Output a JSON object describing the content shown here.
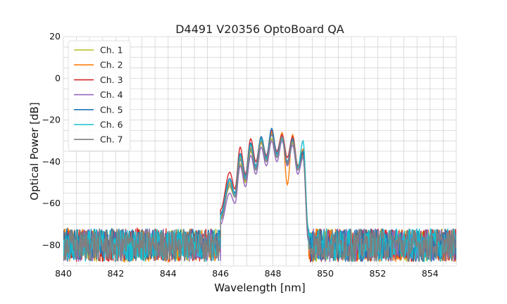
{
  "chart_data": {
    "type": "line",
    "title": "D4491 V20356 OptoBoard QA",
    "xlabel": "Wavelength [nm]",
    "ylabel": "Optical Power [dB]",
    "xlim": [
      840,
      855
    ],
    "ylim": [
      -90,
      20
    ],
    "x_ticks": [
      840,
      842,
      844,
      846,
      848,
      850,
      852,
      854
    ],
    "y_ticks": [
      -80,
      -60,
      -40,
      -20,
      0,
      20
    ],
    "x_tick_labels": [
      "840",
      "842",
      "844",
      "846",
      "848",
      "850",
      "852",
      "854"
    ],
    "y_tick_labels": [
      "−80",
      "−60",
      "−40",
      "−20",
      "0",
      "20"
    ],
    "grid": true,
    "legend_position": "upper-left",
    "noise_floor_db": -80,
    "series": [
      {
        "name": "Ch. 1",
        "color": "#bcbd22",
        "x": [
          846.0,
          846.35,
          846.55,
          846.75,
          846.95,
          847.15,
          847.35,
          847.55,
          847.75,
          847.95,
          848.15,
          848.35,
          848.55,
          848.75,
          848.95,
          849.15,
          849.35
        ],
        "y": [
          -66,
          -52,
          -57,
          -41,
          -50,
          -35,
          -44,
          -31,
          -40,
          -29,
          -38,
          -29,
          -40,
          -31,
          -44,
          -36,
          -74
        ]
      },
      {
        "name": "Ch. 2",
        "color": "#ff7f0e",
        "x": [
          846.0,
          846.35,
          846.55,
          846.75,
          846.95,
          847.15,
          847.35,
          847.55,
          847.75,
          847.95,
          848.15,
          848.35,
          848.55,
          848.75,
          848.95,
          849.15,
          849.35
        ],
        "y": [
          -67,
          -50,
          -56,
          -38,
          -48,
          -33,
          -43,
          -29,
          -39,
          -26,
          -37,
          -26,
          -51,
          -27,
          -42,
          -34,
          -75
        ]
      },
      {
        "name": "Ch. 3",
        "color": "#d62728",
        "x": [
          846.0,
          846.35,
          846.55,
          846.75,
          846.95,
          847.15,
          847.35,
          847.55,
          847.75,
          847.95,
          848.15,
          848.35,
          848.55,
          848.75,
          848.95,
          849.15,
          849.35
        ],
        "y": [
          -63,
          -45,
          -53,
          -33,
          -46,
          -29,
          -40,
          -28,
          -37,
          -25,
          -35,
          -27,
          -38,
          -28,
          -42,
          -36,
          -73
        ]
      },
      {
        "name": "Ch. 4",
        "color": "#9467bd",
        "x": [
          846.0,
          846.35,
          846.55,
          846.75,
          846.95,
          847.15,
          847.35,
          847.55,
          847.75,
          847.95,
          848.15,
          848.35,
          848.55,
          848.75,
          848.95,
          849.15,
          849.35
        ],
        "y": [
          -70,
          -55,
          -60,
          -42,
          -52,
          -37,
          -46,
          -33,
          -42,
          -30,
          -40,
          -30,
          -42,
          -32,
          -46,
          -38,
          -78
        ]
      },
      {
        "name": "Ch. 5",
        "color": "#1f77b4",
        "x": [
          846.0,
          846.35,
          846.55,
          846.75,
          846.95,
          847.15,
          847.35,
          847.55,
          847.75,
          847.95,
          848.15,
          848.35,
          848.55,
          848.75,
          848.95,
          849.15,
          849.35
        ],
        "y": [
          -65,
          -48,
          -55,
          -36,
          -47,
          -31,
          -42,
          -28,
          -38,
          -24,
          -36,
          -28,
          -40,
          -29,
          -43,
          -35,
          -74
        ]
      },
      {
        "name": "Ch. 6",
        "color": "#17becf",
        "x": [
          846.0,
          846.35,
          846.55,
          846.75,
          846.95,
          847.15,
          847.35,
          847.55,
          847.75,
          847.95,
          848.15,
          848.35,
          848.55,
          848.75,
          848.95,
          849.15,
          849.35
        ],
        "y": [
          -66,
          -49,
          -56,
          -37,
          -48,
          -32,
          -43,
          -29,
          -39,
          -27,
          -37,
          -29,
          -41,
          -30,
          -43,
          -30,
          -72
        ]
      },
      {
        "name": "Ch. 7",
        "color": "#7f7f7f",
        "x": [
          846.0,
          846.35,
          846.55,
          846.75,
          846.95,
          847.15,
          847.35,
          847.55,
          847.75,
          847.95,
          848.15,
          848.35,
          848.55,
          848.75,
          848.95,
          849.15,
          849.35
        ],
        "y": [
          -68,
          -51,
          -57,
          -39,
          -49,
          -34,
          -44,
          -30,
          -40,
          -27,
          -38,
          -28,
          -41,
          -30,
          -44,
          -37,
          -76
        ]
      }
    ]
  }
}
